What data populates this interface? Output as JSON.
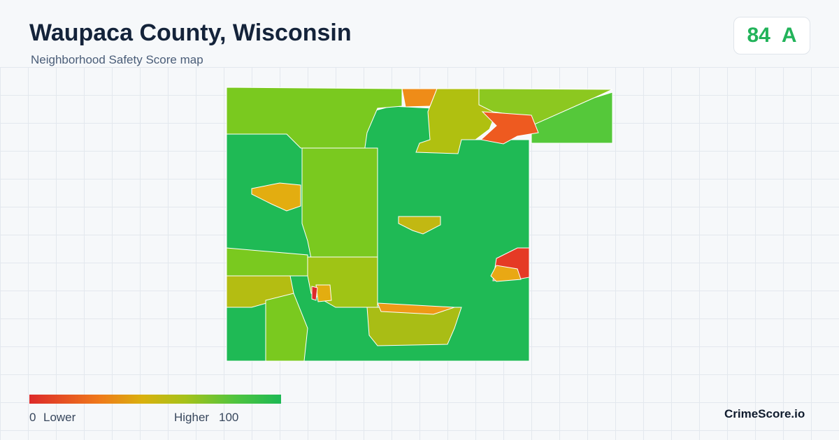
{
  "header": {
    "title": "Waupaca County, Wisconsin",
    "subtitle": "Neighborhood Safety Score map"
  },
  "score": {
    "value": 84,
    "grade": "A"
  },
  "legend": {
    "min": 0,
    "min_label": "Lower",
    "max_label": "Higher",
    "max": 100
  },
  "footer": {
    "brand": "CrimeScore.io"
  }
}
